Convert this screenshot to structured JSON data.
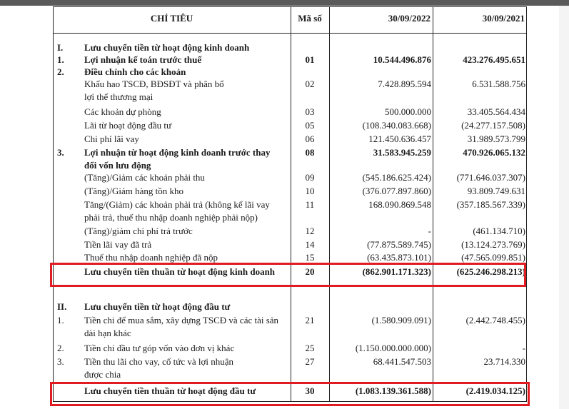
{
  "header": {
    "label": "CHỈ TIÊU",
    "code": "Mã số",
    "col1": "30/09/2022",
    "col2": "30/09/2021"
  },
  "rows": [
    {
      "num": "I.",
      "lines": [
        "Lưu chuyển tiền từ hoạt động kinh doanh"
      ],
      "code": "",
      "v1": "",
      "v2": "",
      "bold": true
    },
    {
      "num": "1.",
      "lines": [
        "Lợi nhuận kế toán trước thuế"
      ],
      "code": "01",
      "v1": "10.544.496.876",
      "v2": "423.276.495.651",
      "bold": true
    },
    {
      "num": "2.",
      "lines": [
        "Điều chỉnh cho các khoản"
      ],
      "code": "",
      "v1": "",
      "v2": "",
      "bold": true
    },
    {
      "num": "",
      "lines": [
        "Khấu hao TSCĐ, BĐSĐT và phân bổ",
        "lợi thế thương mại"
      ],
      "code": "02",
      "v1": "7.428.895.594",
      "v2": "6.531.588.756",
      "bold": false
    },
    {
      "num": "",
      "lines": [
        "Các khoản dự phòng"
      ],
      "code": "03",
      "v1": "500.000.000",
      "v2": "33.405.564.434",
      "bold": false
    },
    {
      "num": "",
      "lines": [
        "Lãi từ hoạt động đầu tư"
      ],
      "code": "05",
      "v1": "(108.340.083.668)",
      "v2": "(24.277.157.508)",
      "bold": false
    },
    {
      "num": "",
      "lines": [
        "Chi phí lãi vay"
      ],
      "code": "06",
      "v1": "121.450.636.457",
      "v2": "31.989.573.799",
      "bold": false
    },
    {
      "num": "3.",
      "lines": [
        "Lợi nhuận từ hoạt động kinh doanh trước thay",
        "đổi vốn lưu động"
      ],
      "code": "08",
      "v1": "31.583.945.259",
      "v2": "470.926.065.132",
      "bold": true
    },
    {
      "num": "",
      "lines": [
        "(Tăng)/Giảm các khoản phải thu"
      ],
      "code": "09",
      "v1": "(545.186.625.424)",
      "v2": "(771.646.037.307)",
      "bold": false
    },
    {
      "num": "",
      "lines": [
        "(Tăng)/Giảm hàng tồn kho"
      ],
      "code": "10",
      "v1": "(376.077.897.860)",
      "v2": "93.809.749.631",
      "bold": false
    },
    {
      "num": "",
      "lines": [
        "Tăng/(Giảm) các khoản phải trả (không kể lãi vay",
        "phải trả, thuế thu nhập doanh nghiệp phải nộp)"
      ],
      "code": "11",
      "v1": "168.090.869.548",
      "v2": "(357.185.567.339)",
      "bold": false
    },
    {
      "num": "",
      "lines": [
        "(Tăng)/giảm chi phí trả trước"
      ],
      "code": "12",
      "v1": "-",
      "v2": "(461.134.710)",
      "bold": false
    },
    {
      "num": "",
      "lines": [
        "Tiền lãi vay đã trả"
      ],
      "code": "14",
      "v1": "(77.875.589.745)",
      "v2": "(13.124.273.769)",
      "bold": false
    },
    {
      "num": "",
      "lines": [
        "Thuế thu nhập doanh nghiệp đã nộp"
      ],
      "code": "15",
      "v1": "(63.435.873.101)",
      "v2": "(47.565.099.851)",
      "bold": false
    },
    {
      "num": "",
      "lines": [
        "Lưu chuyển tiền thuần từ hoạt động kinh doanh"
      ],
      "code": "20",
      "v1": "(862.901.171.323)",
      "v2": "(625.246.298.213)",
      "bold": true,
      "highlight": true
    },
    {
      "num": "II.",
      "lines": [
        "Lưu chuyển tiền từ hoạt động đầu tư"
      ],
      "code": "",
      "v1": "",
      "v2": "",
      "bold": true
    },
    {
      "num": "1.",
      "lines": [
        "Tiền chi để mua sắm, xây dựng TSCĐ và các tài sản",
        "dài hạn khác"
      ],
      "code": "21",
      "v1": "(1.580.909.091)",
      "v2": "(2.442.748.455)",
      "bold": false
    },
    {
      "num": "2.",
      "lines": [
        "Tiền chi đầu tư góp vốn vào đơn vị khác"
      ],
      "code": "25",
      "v1": "(1.150.000.000.000)",
      "v2": "-",
      "bold": false
    },
    {
      "num": "3.",
      "lines": [
        "Tiền thu lãi cho vay, cổ tức và lợi nhuận",
        "được chia"
      ],
      "code": "27",
      "v1": "68.441.547.503",
      "v2": "23.714.330",
      "bold": false
    },
    {
      "num": "",
      "lines": [
        "Lưu chuyển tiền thuần từ hoạt động đầu tư"
      ],
      "code": "30",
      "v1": "(1.083.139.361.588)",
      "v2": "(2.419.034.125)",
      "bold": true,
      "highlight": true
    }
  ],
  "highlight_color": "#e01b22"
}
